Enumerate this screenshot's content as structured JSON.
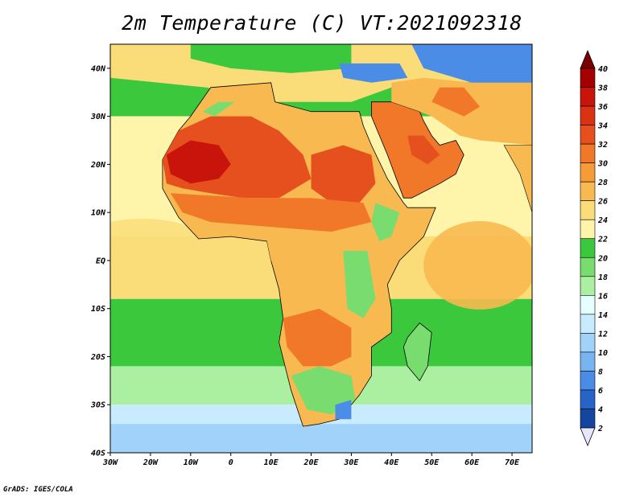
{
  "title": "2m Temperature (C) VT:2021092318",
  "credit": "GrADS: IGES/COLA",
  "lat_ticks": [
    "40N",
    "30N",
    "20N",
    "10N",
    "EQ",
    "10S",
    "20S",
    "30S",
    "40S"
  ],
  "lon_ticks": [
    "30W",
    "20W",
    "10W",
    "0",
    "10E",
    "20E",
    "30E",
    "40E",
    "50E",
    "60E",
    "70E"
  ],
  "colorbar": {
    "labels": [
      "40",
      "38",
      "36",
      "34",
      "32",
      "30",
      "28",
      "26",
      "24",
      "22",
      "20",
      "18",
      "16",
      "14",
      "12",
      "10",
      "8",
      "6",
      "4",
      "2"
    ],
    "colors": [
      "#a50000",
      "#c8140a",
      "#dc3214",
      "#e6501e",
      "#f07828",
      "#f59b37",
      "#f8b950",
      "#fadc78",
      "#fff5aa",
      "#3cc83c",
      "#78dc6e",
      "#aaf0a0",
      "#e6ffff",
      "#c8ebff",
      "#a0d2fa",
      "#78b4f0",
      "#4b8ce6",
      "#2864c8",
      "#1446a0",
      "#001e78"
    ],
    "top_color": "#780000",
    "bottom_color": "#e6e6ff"
  },
  "map": {
    "lon_range": [
      -30,
      75
    ],
    "lat_range": [
      -40,
      45
    ],
    "colors": {
      "ocean_warm": "#fadc78",
      "ocean_mid": "#fff5aa",
      "ocean_green": "#3cc83c",
      "ocean_cool": "#aaf0a0",
      "ocean_cold": "#c8ebff",
      "ocean_colder": "#a0d2fa",
      "sahara_hot": "#c8140a",
      "sahara": "#e6501e",
      "land_warm": "#f07828",
      "land_mid": "#f8b950",
      "land_green": "#78dc6e",
      "mountains_cold": "#4b8ce6",
      "med_sea": "#fadc78"
    }
  }
}
